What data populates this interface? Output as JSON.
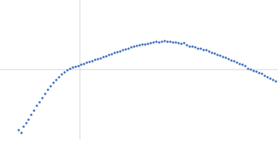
{
  "chart_data": {
    "type": "scatter",
    "x": [
      -88,
      -84,
      -81,
      -77,
      -74,
      -70,
      -66,
      -62,
      -58,
      -54,
      -50,
      -46,
      -42,
      -38,
      -34,
      -30,
      -26,
      -22,
      -18,
      -14,
      -10,
      -6,
      -2,
      2,
      6,
      10,
      14,
      18,
      22,
      26,
      30,
      34,
      38,
      42,
      46,
      50,
      54,
      58,
      62,
      66,
      70,
      74,
      78,
      82,
      86,
      90,
      94,
      98,
      102,
      106,
      110,
      114,
      118,
      122,
      126,
      130,
      134,
      138,
      142,
      146,
      150,
      154,
      158,
      162,
      166,
      170,
      174,
      178,
      182,
      186,
      190,
      194,
      198,
      202,
      206,
      210,
      214,
      218,
      222,
      226,
      230,
      234,
      238,
      242,
      246,
      250,
      254,
      258,
      262,
      266,
      270,
      274,
      278,
      282
    ],
    "values": [
      -87,
      -91,
      -82,
      -77,
      -72,
      -65,
      -59,
      -52,
      -47,
      -41,
      -35,
      -29,
      -24,
      -19,
      -15,
      -11,
      -7,
      -4,
      -1,
      1,
      3,
      4,
      5,
      7,
      8,
      10,
      11,
      12,
      14,
      15,
      16,
      18,
      19,
      21,
      22,
      24,
      25,
      26,
      28,
      29,
      30,
      32,
      33,
      34,
      35,
      36,
      36,
      37,
      38,
      39,
      40,
      39,
      40,
      41,
      40,
      40,
      39,
      39,
      38,
      37,
      38,
      35,
      33,
      33,
      32,
      30,
      30,
      28,
      28,
      26,
      24,
      23,
      21,
      20,
      18,
      17,
      15,
      13,
      12,
      10,
      8,
      7,
      5,
      1,
      0,
      -2,
      -3,
      -5,
      -6,
      -9,
      -11,
      -13,
      -15,
      -17
    ],
    "color": "#3f6fc2",
    "xlim": [
      -115,
      285
    ],
    "ylim": [
      -100,
      100
    ],
    "zero_lines": true
  }
}
